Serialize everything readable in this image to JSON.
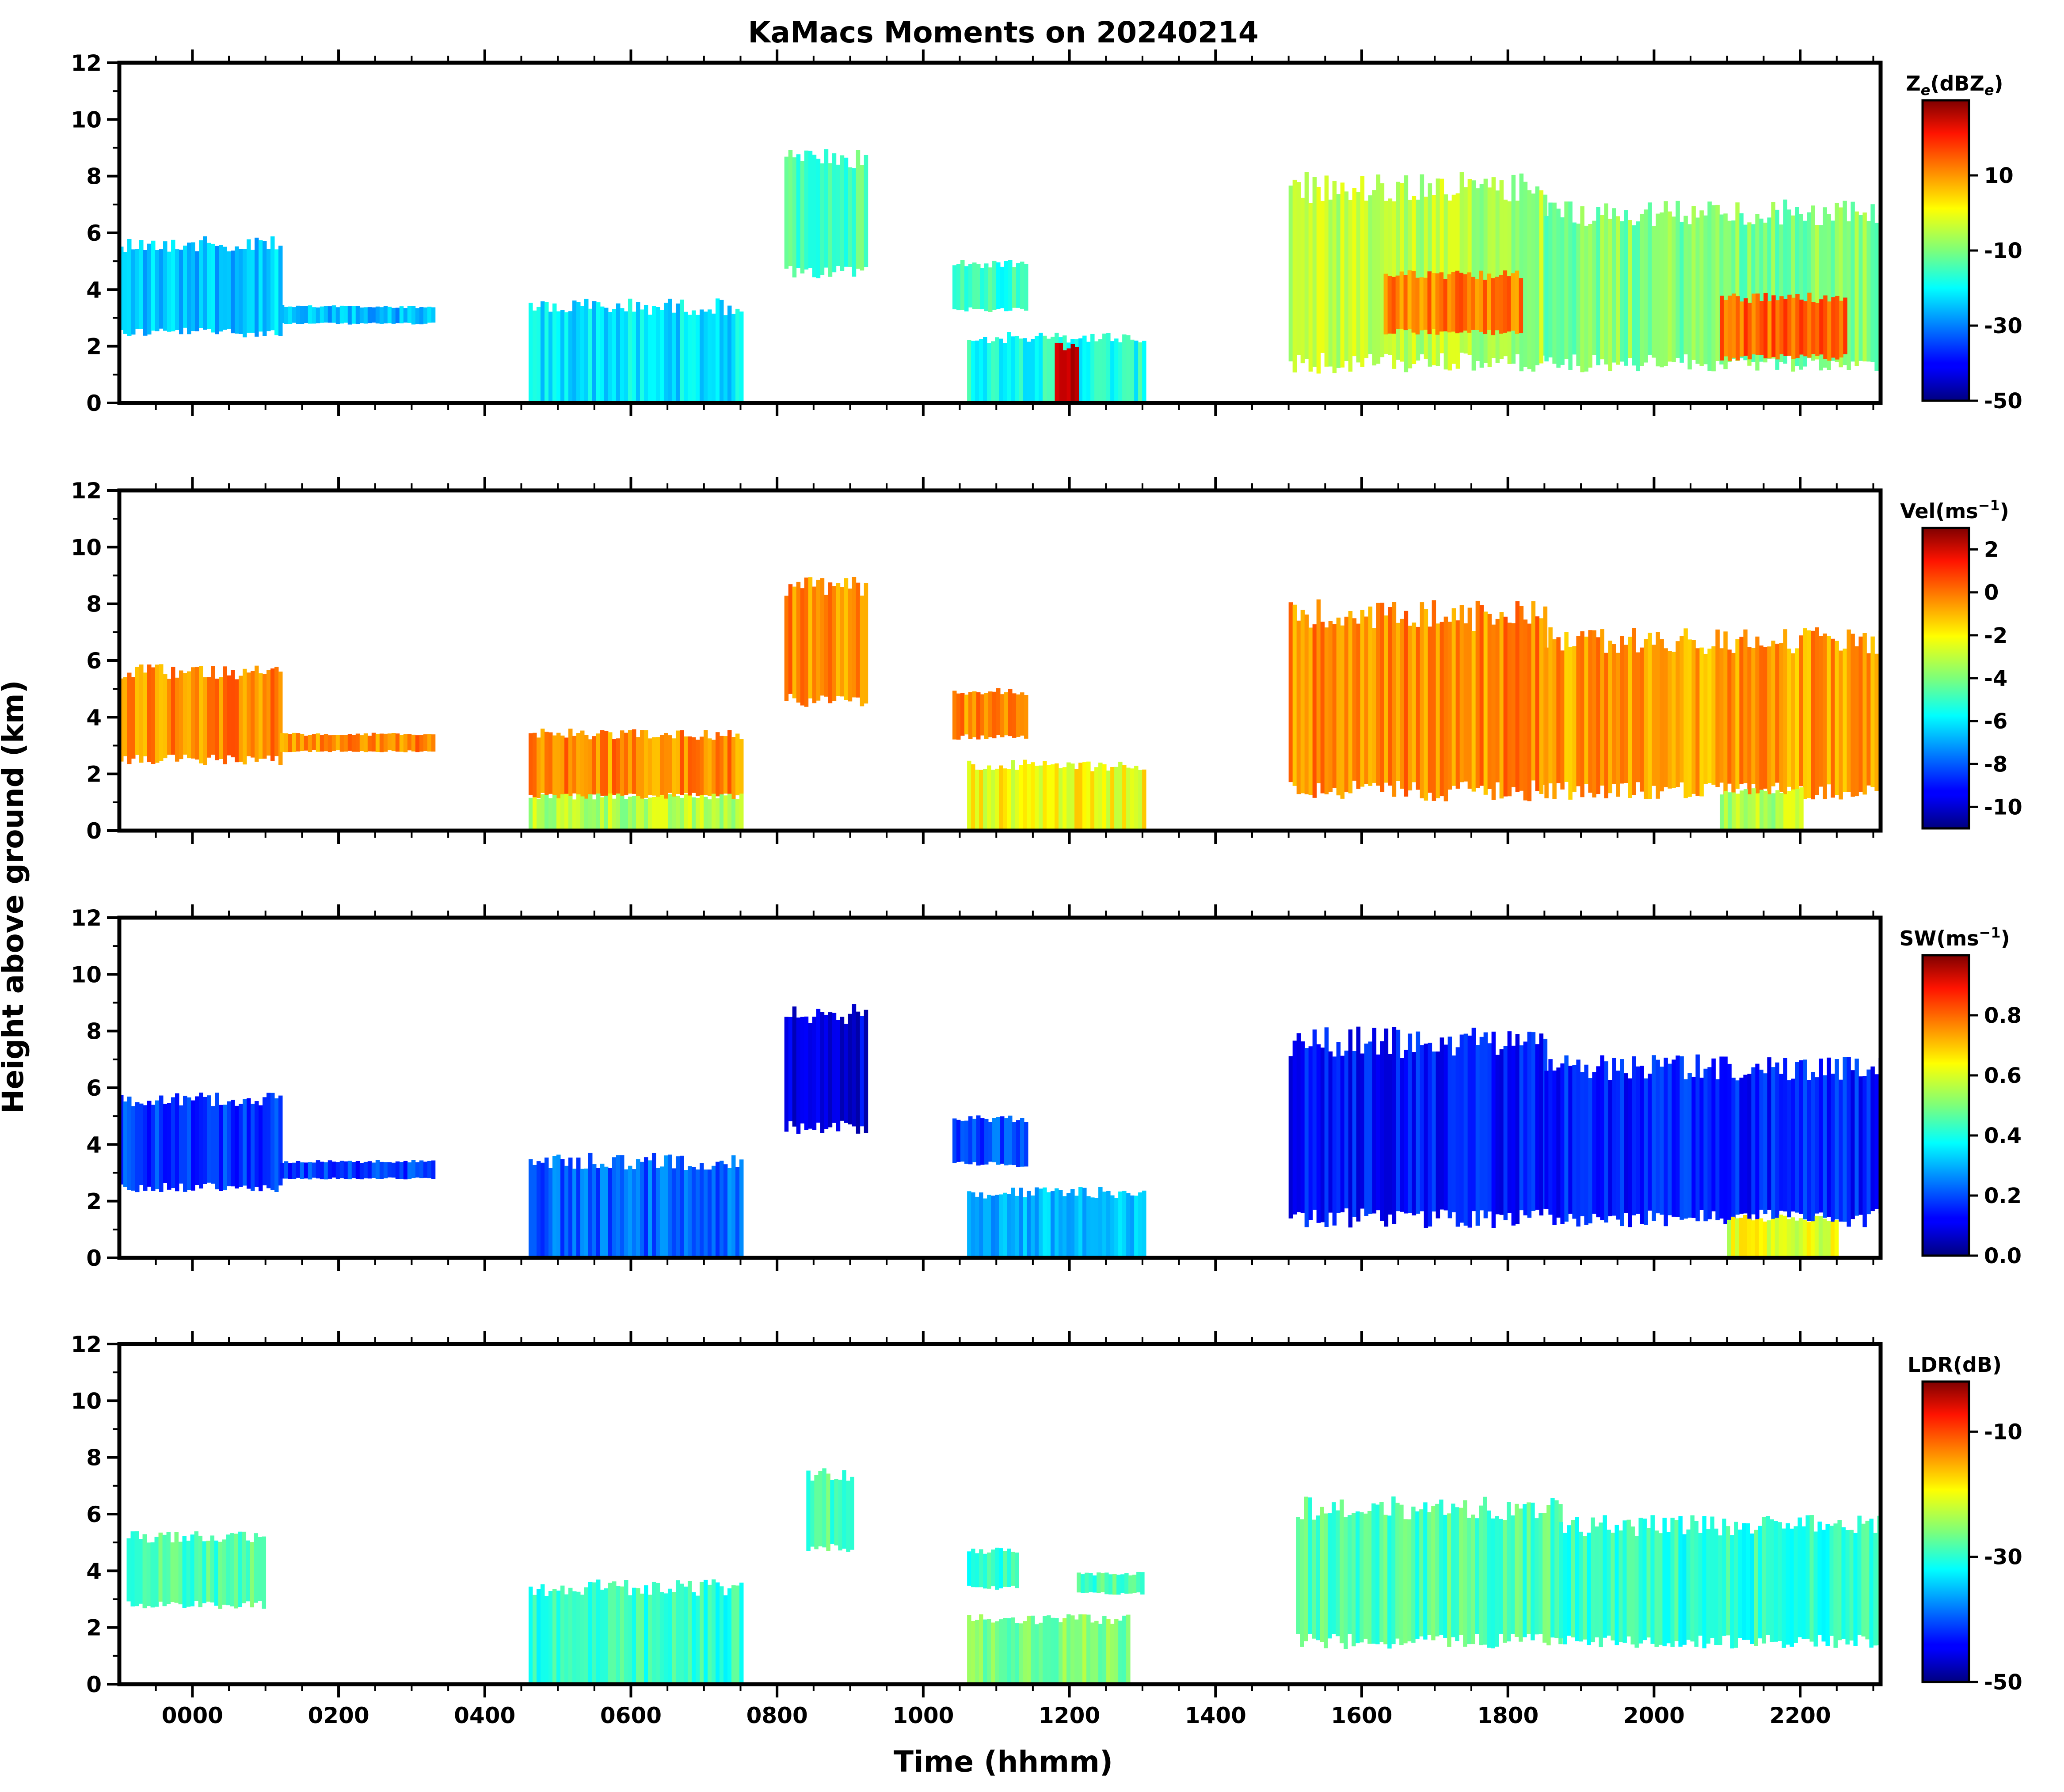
{
  "chart_data": {
    "type": "heatmap",
    "title": "KaMacs Moments on 20240214",
    "xlabel": "Time (hhmm)",
    "ylabel": "Height above ground (km)",
    "x_tick_labels": [
      "0000",
      "0200",
      "0400",
      "0600",
      "0800",
      "1000",
      "1200",
      "1400",
      "1600",
      "1800",
      "2000",
      "2200"
    ],
    "x_tick_values_hours": [
      0,
      2,
      4,
      6,
      8,
      10,
      12,
      14,
      16,
      18,
      20,
      22
    ],
    "xlim_hours": [
      -1.0,
      23.1
    ],
    "ylim_km": [
      0,
      12
    ],
    "y_ticks_km": [
      0,
      2,
      4,
      6,
      8,
      10,
      12
    ],
    "panels": [
      {
        "name": "reflectivity",
        "colorbar_label_main": "Z",
        "colorbar_label_sub": "e",
        "colorbar_label_rest": "(dBZ",
        "colorbar_label_sub2": "e",
        "colorbar_label_end": ")",
        "clim": [
          -50,
          30
        ],
        "colorbar_ticks": [
          10,
          -10,
          -30,
          -50
        ],
        "colorbar_tick_labels": [
          "10",
          "-10",
          "-30",
          "-50"
        ],
        "echoes": [
          {
            "t0": -1.0,
            "t1": 1.2,
            "z0": 2.5,
            "z1": 5.6,
            "level": 0.32
          },
          {
            "t0": 1.2,
            "t1": 3.3,
            "z0": 2.8,
            "z1": 3.4,
            "level": 0.3
          },
          {
            "t0": 4.6,
            "t1": 7.5,
            "z0": 0.0,
            "z1": 3.4,
            "level": 0.35
          },
          {
            "t0": 8.1,
            "t1": 9.2,
            "z0": 4.6,
            "z1": 8.6,
            "level": 0.45
          },
          {
            "t0": 10.4,
            "t1": 11.4,
            "z0": 3.3,
            "z1": 4.9,
            "level": 0.42
          },
          {
            "t0": 10.6,
            "t1": 13.0,
            "z0": 0.0,
            "z1": 2.3,
            "level": 0.4
          },
          {
            "t0": 11.8,
            "t1": 12.1,
            "z0": 0.0,
            "z1": 2.0,
            "level": 0.95
          },
          {
            "t0": 15.0,
            "t1": 18.5,
            "z0": 1.4,
            "z1": 7.6,
            "level": 0.55
          },
          {
            "t0": 16.3,
            "t1": 18.2,
            "z0": 2.5,
            "z1": 4.5,
            "level": 0.75
          },
          {
            "t0": 18.5,
            "t1": 23.1,
            "z0": 1.4,
            "z1": 6.7,
            "level": 0.5
          },
          {
            "t0": 20.9,
            "t1": 22.6,
            "z0": 1.6,
            "z1": 3.7,
            "level": 0.78
          }
        ]
      },
      {
        "name": "velocity",
        "colorbar_label_main": "Vel(ms",
        "colorbar_label_sup": "−1",
        "colorbar_label_end": ")",
        "clim": [
          -11,
          3
        ],
        "colorbar_ticks": [
          2,
          0,
          -2,
          -4,
          -6,
          -8,
          -10
        ],
        "colorbar_tick_labels": [
          "2",
          "0",
          "-2",
          "-4",
          "-6",
          "-8",
          "-10"
        ],
        "echoes": [
          {
            "t0": -1.0,
            "t1": 1.2,
            "z0": 2.5,
            "z1": 5.6,
            "level": 0.74
          },
          {
            "t0": 1.2,
            "t1": 3.3,
            "z0": 2.8,
            "z1": 3.4,
            "level": 0.74
          },
          {
            "t0": 4.6,
            "t1": 7.5,
            "z0": 1.2,
            "z1": 3.4,
            "level": 0.74
          },
          {
            "t0": 4.6,
            "t1": 7.5,
            "z0": 0.0,
            "z1": 1.2,
            "level": 0.55
          },
          {
            "t0": 8.1,
            "t1": 9.2,
            "z0": 4.6,
            "z1": 8.6,
            "level": 0.74
          },
          {
            "t0": 10.4,
            "t1": 11.4,
            "z0": 3.3,
            "z1": 4.9,
            "level": 0.74
          },
          {
            "t0": 10.6,
            "t1": 13.0,
            "z0": 0.0,
            "z1": 2.3,
            "level": 0.62
          },
          {
            "t0": 15.0,
            "t1": 18.5,
            "z0": 1.4,
            "z1": 7.6,
            "level": 0.74
          },
          {
            "t0": 18.5,
            "t1": 23.1,
            "z0": 1.4,
            "z1": 6.7,
            "level": 0.72
          },
          {
            "t0": 20.9,
            "t1": 22.0,
            "z0": 0.0,
            "z1": 1.4,
            "level": 0.55
          }
        ]
      },
      {
        "name": "spectrum_width",
        "colorbar_label_main": "SW(ms",
        "colorbar_label_sup": "−1",
        "colorbar_label_end": ")",
        "clim": [
          0.0,
          1.0
        ],
        "colorbar_ticks": [
          0.8,
          0.6,
          0.4,
          0.2,
          0.0
        ],
        "colorbar_tick_labels": [
          "0.8",
          "0.6",
          "0.4",
          "0.2",
          "0.0"
        ],
        "echoes": [
          {
            "t0": -1.0,
            "t1": 1.2,
            "z0": 2.5,
            "z1": 5.6,
            "level": 0.18
          },
          {
            "t0": 1.2,
            "t1": 3.3,
            "z0": 2.8,
            "z1": 3.4,
            "level": 0.18
          },
          {
            "t0": 4.6,
            "t1": 7.5,
            "z0": 0.0,
            "z1": 3.4,
            "level": 0.22
          },
          {
            "t0": 8.1,
            "t1": 9.2,
            "z0": 4.6,
            "z1": 8.6,
            "level": 0.1
          },
          {
            "t0": 10.4,
            "t1": 11.4,
            "z0": 3.3,
            "z1": 4.9,
            "level": 0.2
          },
          {
            "t0": 10.6,
            "t1": 13.0,
            "z0": 0.0,
            "z1": 2.3,
            "level": 0.3
          },
          {
            "t0": 15.0,
            "t1": 18.5,
            "z0": 1.4,
            "z1": 7.6,
            "level": 0.14
          },
          {
            "t0": 18.5,
            "t1": 23.1,
            "z0": 1.4,
            "z1": 6.7,
            "level": 0.15
          },
          {
            "t0": 21.0,
            "t1": 22.5,
            "z0": 0.0,
            "z1": 1.4,
            "level": 0.6
          }
        ]
      },
      {
        "name": "ldr",
        "colorbar_label_main": "LDR(dB)",
        "clim": [
          -50,
          -2
        ],
        "colorbar_ticks": [
          -10,
          -30,
          -50
        ],
        "colorbar_tick_labels": [
          "-10",
          "-30",
          "-50"
        ],
        "echoes": [
          {
            "t0": -0.9,
            "t1": 1.0,
            "z0": 2.8,
            "z1": 5.2,
            "level": 0.45
          },
          {
            "t0": 4.6,
            "t1": 7.5,
            "z0": 0.0,
            "z1": 3.4,
            "level": 0.42
          },
          {
            "t0": 8.4,
            "t1": 9.0,
            "z0": 4.8,
            "z1": 7.4,
            "level": 0.45
          },
          {
            "t0": 10.6,
            "t1": 11.3,
            "z0": 3.4,
            "z1": 4.7,
            "level": 0.42
          },
          {
            "t0": 10.6,
            "t1": 12.8,
            "z0": 0.0,
            "z1": 2.3,
            "level": 0.5
          },
          {
            "t0": 12.1,
            "t1": 13.0,
            "z0": 3.2,
            "z1": 3.9,
            "level": 0.45
          },
          {
            "t0": 15.1,
            "t1": 18.7,
            "z0": 1.5,
            "z1": 6.2,
            "level": 0.45
          },
          {
            "t0": 18.7,
            "t1": 23.1,
            "z0": 1.5,
            "z1": 5.6,
            "level": 0.42
          }
        ]
      }
    ]
  }
}
